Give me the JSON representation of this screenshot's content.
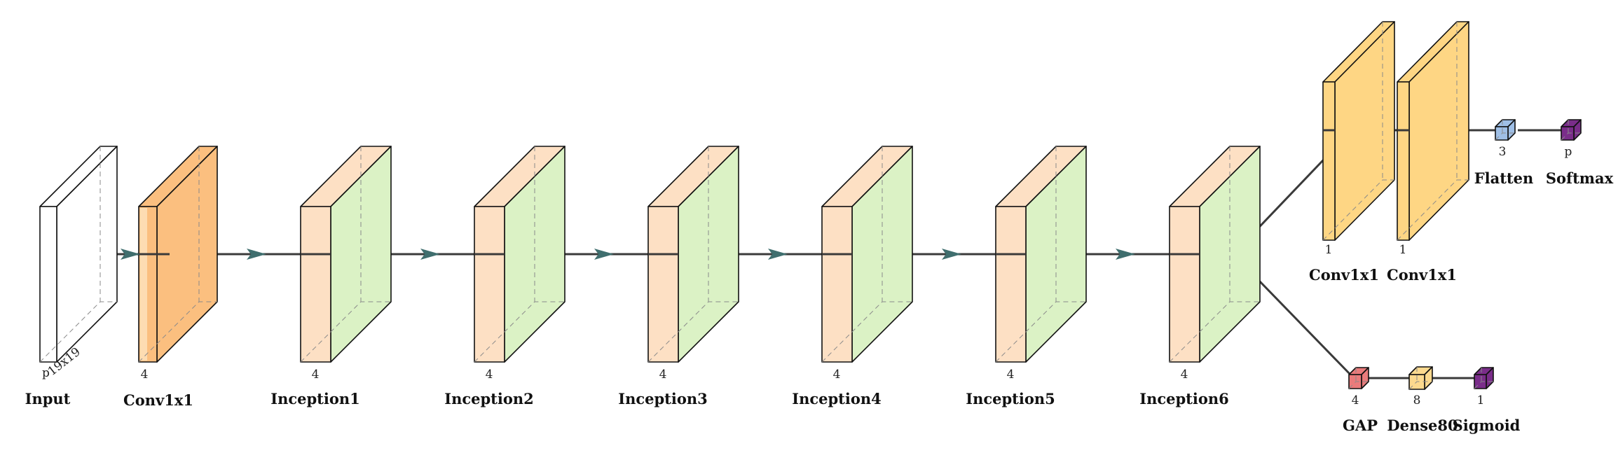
{
  "colors": {
    "input": "#ffffff",
    "conv_orange": "#fbbf7f",
    "conv_orange_light": "#fddcb2",
    "inception_peach": "#fde0c4",
    "inception_green": "#dbf2c5",
    "conv_yellow": "#fed684",
    "flatten_blue": "#9fbfe6",
    "softmax_purple": "#7a2d8a",
    "gap_red": "#ea7b7b",
    "dense_yellow": "#fcd98e",
    "sigmoid_purple": "#7a2d8a",
    "connector": "#3a3a3a",
    "arrow": "#3f6e6e"
  },
  "layers": {
    "input": {
      "label": "Input",
      "depth": "p",
      "size": "19x19"
    },
    "conv1": {
      "label": "Conv1x1",
      "depth": "4"
    },
    "inception1": {
      "label": "Inception1",
      "depth": "4"
    },
    "inception2": {
      "label": "Inception2",
      "depth": "4"
    },
    "inception3": {
      "label": "Inception3",
      "depth": "4"
    },
    "inception4": {
      "label": "Inception4",
      "depth": "4"
    },
    "inception5": {
      "label": "Inception5",
      "depth": "4"
    },
    "inception6": {
      "label": "Inception6",
      "depth": "4"
    },
    "policy_conv_a": {
      "label": "Conv1x1",
      "depth": "1"
    },
    "policy_conv_b": {
      "label": "Conv1x1",
      "depth": "1"
    },
    "flatten": {
      "label": "Flatten",
      "depth": "3"
    },
    "softmax": {
      "label": "Softmax",
      "depth": "p"
    },
    "gap": {
      "label": "GAP",
      "depth": "4"
    },
    "dense80": {
      "label": "Dense80",
      "depth": "8"
    },
    "sigmoid": {
      "label": "Sigmoid",
      "depth": "1"
    }
  }
}
